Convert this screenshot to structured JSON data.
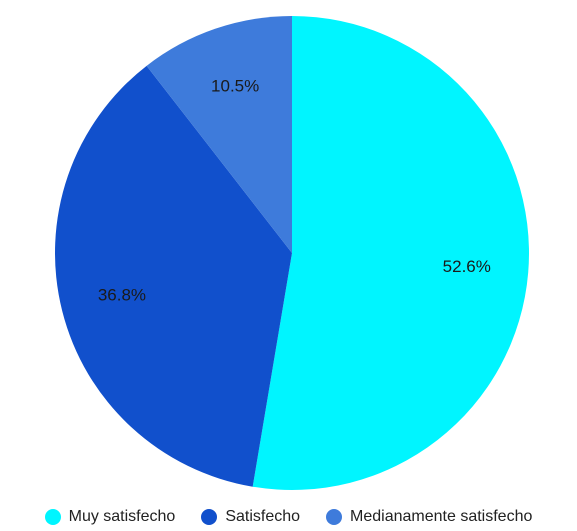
{
  "chart_data": {
    "type": "pie",
    "title": "",
    "legend_position": "bottom",
    "slices": [
      {
        "label": "Muy satisfecho",
        "value": 52.6,
        "display": "52.6%",
        "color": "#00F5FF"
      },
      {
        "label": "Satisfecho",
        "value": 36.8,
        "display": "36.8%",
        "color": "#1150CC"
      },
      {
        "label": "Medianamente satisfecho",
        "value": 10.5,
        "display": "10.5%",
        "color": "#3E7BDB"
      }
    ]
  }
}
